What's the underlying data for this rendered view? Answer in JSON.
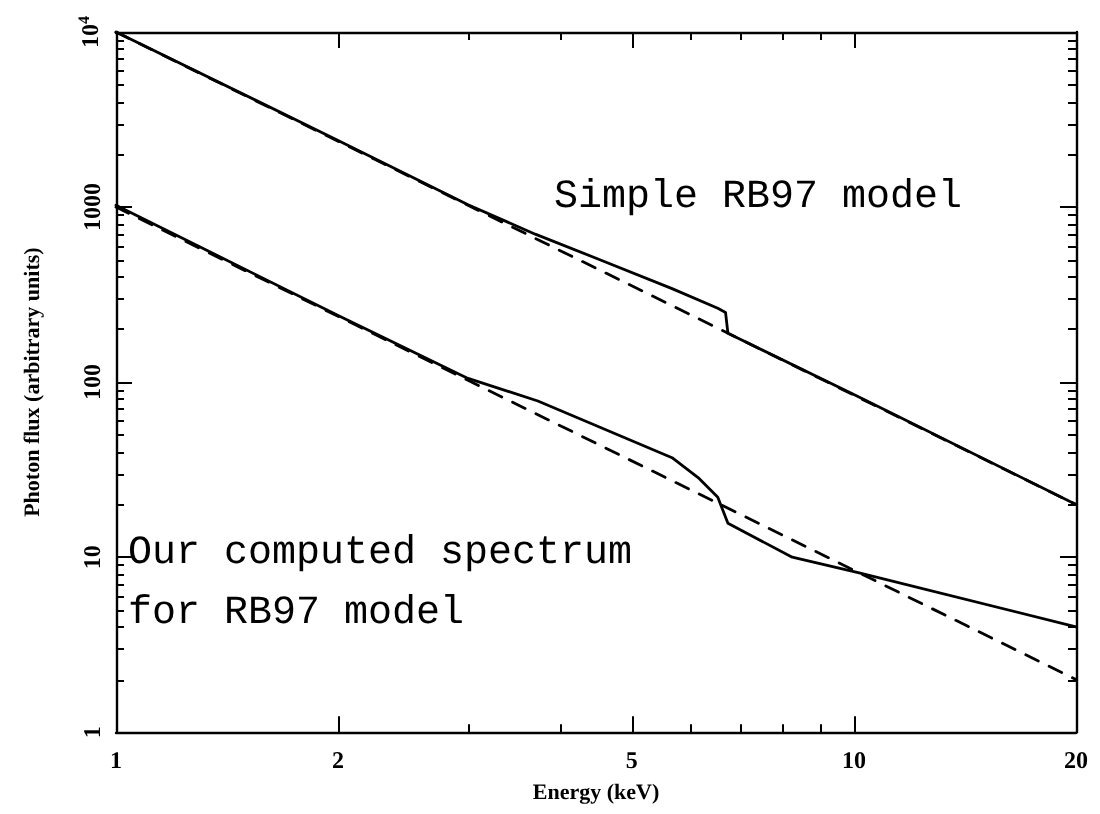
{
  "chart_data": {
    "type": "line",
    "xlabel": "Energy (keV)",
    "ylabel": "Photon flux (arbitrary units)",
    "log": "xy",
    "grid": false,
    "marker": "none",
    "xlim": [
      1,
      20
    ],
    "xticks": [
      1,
      2,
      5,
      10,
      20
    ],
    "ylim": [
      1,
      10000
    ],
    "yticks": [
      1,
      10,
      100,
      1000,
      {
        "value": 10000,
        "label": "10$^{4}$"
      }
    ],
    "annotations": [
      "Simple RB97 model",
      "Our computed spectrum for RB97 model"
    ],
    "series": [
      {
        "color": "#000000",
        "line_style": "dashed",
        "x": [
          1,
          20
        ],
        "values": [
          10000,
          20
        ]
      },
      {
        "color": "#000000",
        "line_style": "solid",
        "x": [
          1,
          2,
          3,
          3.7,
          4.5,
          5.67,
          6.54,
          6.7,
          6.75,
          10,
          20
        ],
        "values": [
          10000,
          2400,
          1030,
          700,
          505,
          342,
          264,
          250,
          190,
          85,
          20
        ]
      },
      {
        "color": "#000000",
        "line_style": "dashed",
        "x": [
          1,
          20
        ],
        "values": [
          1000,
          2
        ]
      },
      {
        "color": "#000000",
        "line_style": "solid",
        "x": [
          1,
          2,
          3,
          3.73,
          5.67,
          6.15,
          6.54,
          6.75,
          8.25,
          10.2,
          20
        ],
        "values": [
          1025,
          240,
          105,
          78,
          37,
          28.5,
          22,
          15.6,
          10,
          8.1,
          4
        ]
      }
    ]
  }
}
